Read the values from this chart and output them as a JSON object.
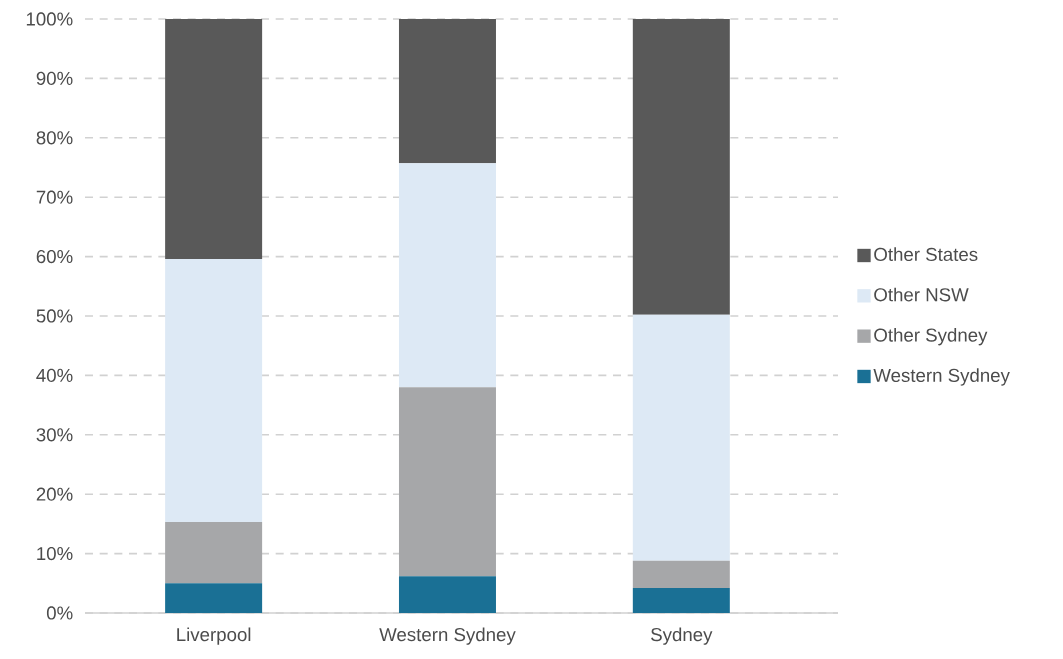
{
  "chart_data": {
    "type": "bar",
    "stacked": true,
    "categories": [
      "Liverpool",
      "Western Sydney",
      "Sydney"
    ],
    "series": [
      {
        "name": "Western Sydney",
        "color": "#1a7095",
        "values": [
          5.0,
          6.2,
          4.2
        ]
      },
      {
        "name": "Other Sydney",
        "color": "#a6a7a9",
        "values": [
          10.3,
          31.8,
          4.6
        ]
      },
      {
        "name": "Other NSW",
        "color": "#dde9f5",
        "values": [
          44.3,
          37.7,
          41.4
        ]
      },
      {
        "name": "Other States",
        "color": "#595959",
        "values": [
          40.4,
          24.3,
          49.8
        ]
      }
    ],
    "ylim": [
      0,
      100
    ],
    "yticks": [
      {
        "value": 0,
        "label": "0%"
      },
      {
        "value": 10,
        "label": "10%"
      },
      {
        "value": 20,
        "label": "20%"
      },
      {
        "value": 30,
        "label": "30%"
      },
      {
        "value": 40,
        "label": "40%"
      },
      {
        "value": 50,
        "label": "50%"
      },
      {
        "value": 60,
        "label": "60%"
      },
      {
        "value": 70,
        "label": "70%"
      },
      {
        "value": 80,
        "label": "80%"
      },
      {
        "value": 90,
        "label": "90%"
      },
      {
        "value": 100,
        "label": "100%"
      }
    ],
    "grid": "y",
    "legend": "right"
  }
}
